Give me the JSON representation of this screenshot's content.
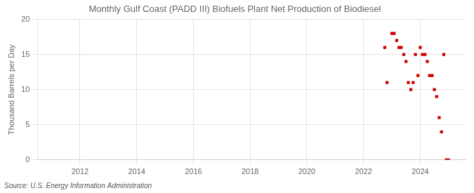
{
  "chart_data": {
    "type": "scatter",
    "title": "Monthly Gulf Coast (PADD III) Biofuels Plant Net Production of Biodiesel",
    "y_label": "Thousand Barrels per Day",
    "annotations": [
      "Source: U.S. Energy Information Administration"
    ],
    "x": [
      2022.75,
      2022.83,
      2023.0,
      2023.08,
      2023.17,
      2023.25,
      2023.33,
      2023.42,
      2023.5,
      2023.58,
      2023.67,
      2023.75,
      2023.83,
      2023.92,
      2024.0,
      2024.08,
      2024.17,
      2024.25,
      2024.33,
      2024.42,
      2024.5,
      2024.58,
      2024.67,
      2024.75,
      2024.83,
      2024.92,
      2025.0
    ],
    "values": [
      16,
      11,
      18,
      18,
      17,
      16,
      16,
      15,
      14,
      11,
      10,
      11,
      15,
      12,
      16,
      15,
      15,
      14,
      12,
      12,
      10,
      9,
      6,
      4,
      15,
      0,
      0
    ],
    "color": "#cc0000",
    "marker": "square",
    "xlim": [
      2010.5,
      2025.6
    ],
    "xticks": [
      2012,
      2014,
      2016,
      2018,
      2020,
      2022,
      2024
    ],
    "ylim": [
      0,
      20
    ],
    "yticks": [
      0,
      5,
      10,
      15,
      20
    ],
    "grid": true
  }
}
